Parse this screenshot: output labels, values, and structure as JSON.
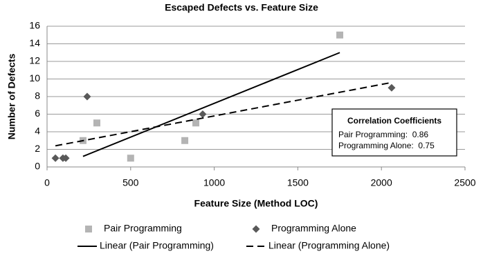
{
  "chart_data": {
    "type": "scatter",
    "title": "Escaped Defects vs. Feature Size",
    "x_label": "Feature Size (Method LOC)",
    "y_label": "Number of Defects",
    "xlim": [
      0,
      2500
    ],
    "xticks": [
      0,
      500,
      1000,
      1500,
      2000,
      2500
    ],
    "ylim": [
      0,
      16
    ],
    "yticks": [
      0,
      2,
      4,
      6,
      8,
      10,
      12,
      14,
      16
    ],
    "grid": true,
    "legend": "bottom",
    "series": [
      {
        "name": "Pair Programming",
        "color": "#b4b4b4",
        "marker": "square",
        "x": [
          215,
          298,
          500,
          824,
          890,
          1751
        ],
        "values": [
          3,
          5,
          1,
          3,
          5,
          15
        ]
      },
      {
        "name": "Programming Alone",
        "color": "#595959",
        "marker": "diamond",
        "x": [
          50,
          95,
          112,
          240,
          931,
          2061
        ],
        "values": [
          1,
          1,
          1,
          8,
          6,
          9
        ]
      },
      {
        "name": "Linear (Pair Programming)",
        "color": "#000000",
        "line_style": "solid",
        "x": [
          215,
          1751
        ],
        "values": [
          1.2,
          13
        ]
      },
      {
        "name": "Linear (Programming Alone)",
        "color": "#000000",
        "line_style": "dashed",
        "x": [
          50,
          2061
        ],
        "values": [
          2.4,
          9.6
        ]
      }
    ],
    "annotation": {
      "title": "Correlation Coefficients",
      "lines": [
        "Pair Programming:  0.86",
        "Programming Alone:  0.75"
      ]
    }
  }
}
